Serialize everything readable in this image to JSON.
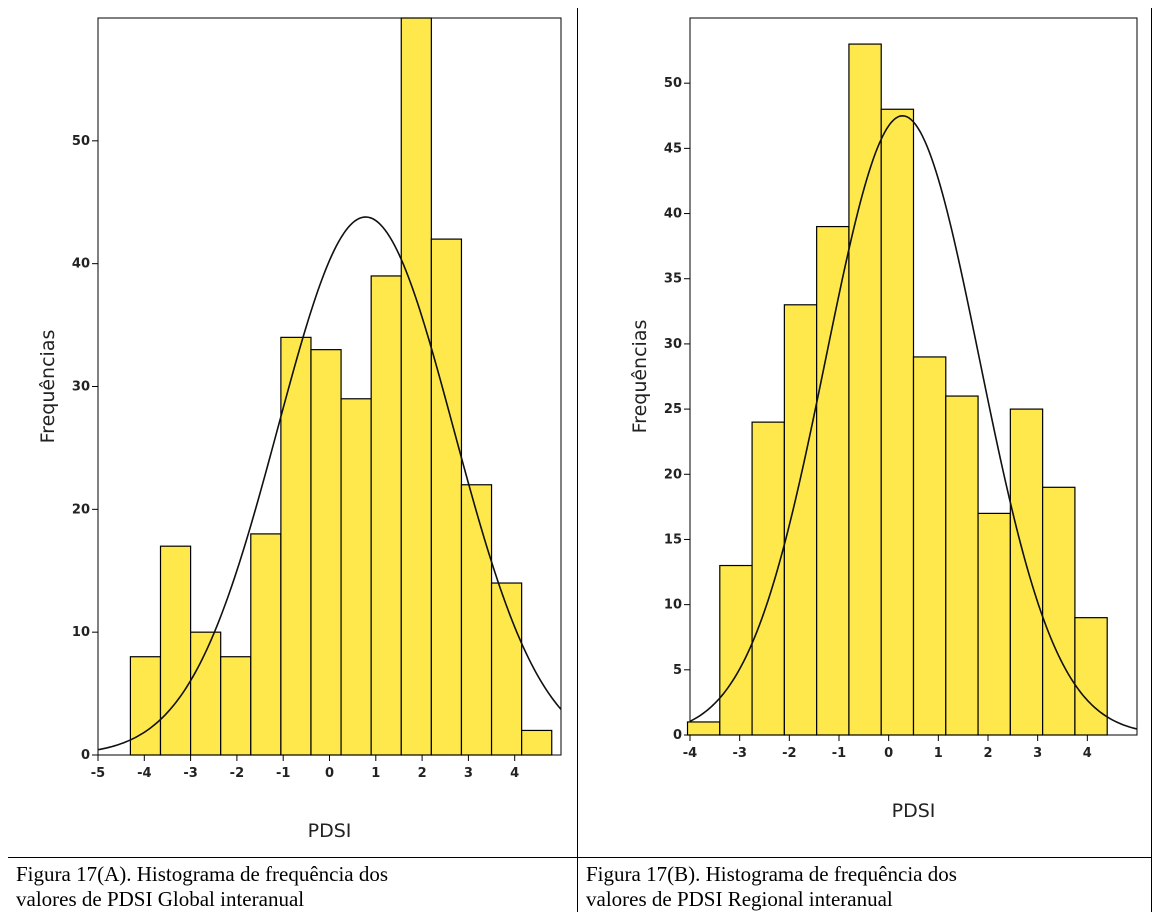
{
  "chart_data": [
    {
      "type": "bar",
      "title": "",
      "xlabel": "PDSI",
      "ylabel": "Frequências",
      "x_ticks": [
        "-5",
        "-4",
        "-3",
        "-2",
        "-1",
        "0",
        "1",
        "2",
        "3",
        "4"
      ],
      "y_ticks": [
        "0",
        "10",
        "20",
        "30",
        "40",
        "50"
      ],
      "xlim": [
        -5,
        5
      ],
      "ylim": [
        0,
        60
      ],
      "bin_edges": [
        -4.3,
        -3.65,
        -3.0,
        -2.35,
        -1.7,
        -1.05,
        -0.4,
        0.25,
        0.9,
        1.55,
        2.2,
        2.85,
        3.5,
        4.15,
        4.8
      ],
      "values": [
        8,
        17,
        10,
        8,
        18,
        34,
        33,
        29,
        39,
        60,
        42,
        22,
        14,
        2
      ],
      "normal_curve": {
        "mean": 0.78,
        "sd": 1.9,
        "peak": 43.8
      }
    },
    {
      "type": "bar",
      "title": "",
      "xlabel": "PDSI",
      "ylabel": "Frequências",
      "x_ticks": [
        "-4",
        "-3",
        "-2",
        "-1",
        "0",
        "1",
        "2",
        "3",
        "4"
      ],
      "y_ticks": [
        "0",
        "5",
        "10",
        "15",
        "20",
        "25",
        "30",
        "35",
        "40",
        "45",
        "50"
      ],
      "xlim": [
        -4,
        5
      ],
      "ylim": [
        0,
        55
      ],
      "bin_edges": [
        -4.05,
        -3.4,
        -2.75,
        -2.1,
        -1.45,
        -0.8,
        -0.15,
        0.5,
        1.15,
        1.8,
        2.45,
        3.1,
        3.75,
        4.4
      ],
      "values": [
        1,
        13,
        24,
        33,
        39,
        53,
        48,
        29,
        26,
        17,
        25,
        19,
        9
      ],
      "normal_curve": {
        "mean": 0.28,
        "sd": 1.55,
        "peak": 47.5
      }
    }
  ],
  "captions": {
    "a_line1": "Figura 17(A). Histograma de frequência dos",
    "a_line2": "valores de PDSI Global interanual",
    "b_line1": "Figura 17(B). Histograma de frequência dos",
    "b_line2": "valores de PDSI Regional interanual"
  }
}
